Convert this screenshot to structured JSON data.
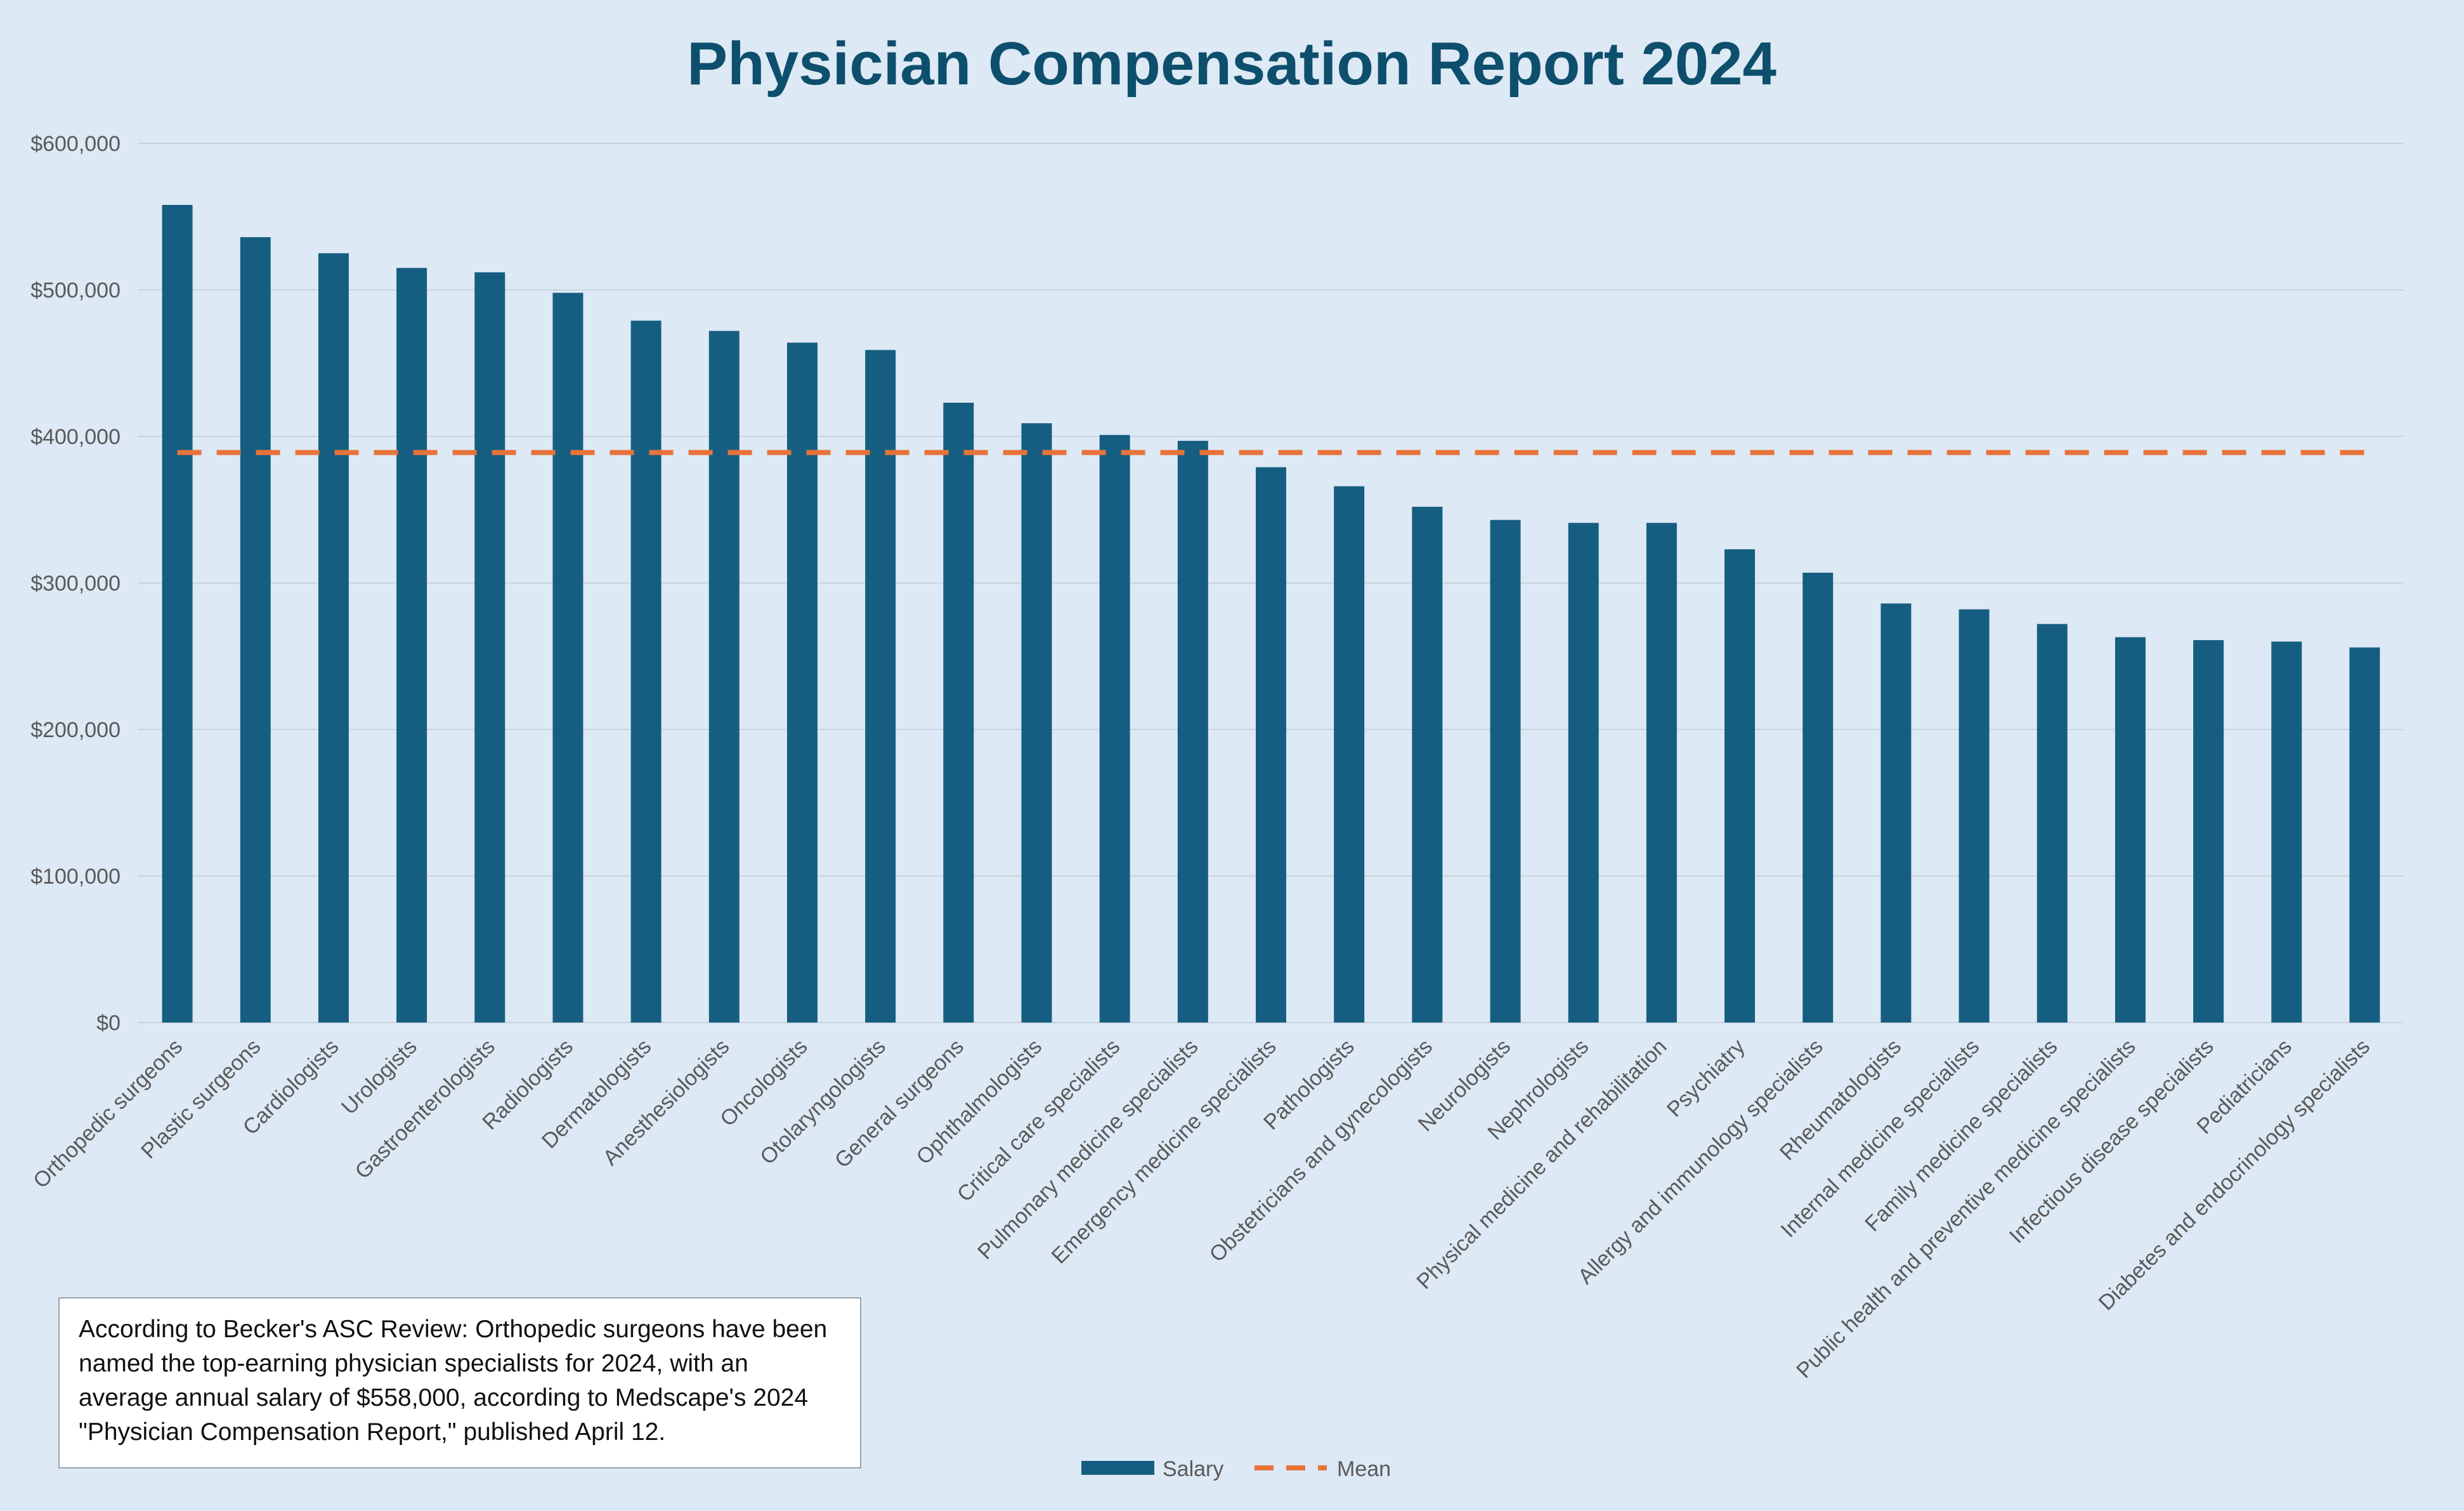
{
  "chart_data": {
    "type": "bar",
    "title": "Physician Compensation Report 2024",
    "xlabel": "",
    "ylabel": "",
    "ylim": [
      0,
      600000
    ],
    "yticks": [
      0,
      100000,
      200000,
      300000,
      400000,
      500000,
      600000
    ],
    "ytick_labels": [
      "$0",
      "$100,000",
      "$200,000",
      "$300,000",
      "$400,000",
      "$500,000",
      "$600,000"
    ],
    "grid": true,
    "legend_position": "bottom",
    "categories": [
      "Orthopedic surgeons",
      "Plastic surgeons",
      "Cardiologists",
      "Urologists",
      "Gastroenterologists",
      "Radiologists",
      "Dermatologists",
      "Anesthesiologists",
      "Oncologists",
      "Otolaryngologists",
      "General surgeons",
      "Ophthalmologists",
      "Critical care specialists",
      "Pulmonary medicine specialists",
      "Emergency medicine specialists",
      "Pathologists",
      "Obstetricians and gynecologists",
      "Neurologists",
      "Nephrologists",
      "Physical medicine and rehabilitation",
      "Psychiatry",
      "Allergy and immunology specialists",
      "Rheumatologists",
      "Internal medicine specialists",
      "Family medicine specialists",
      "Public health and preventive medicine specialists",
      "Infectious disease specialists",
      "Pediatricians",
      "Diabetes and endocrinology specialists"
    ],
    "series": [
      {
        "name": "Salary",
        "type": "bar",
        "color": "#165e81",
        "values": [
          558000,
          536000,
          525000,
          515000,
          512000,
          498000,
          479000,
          472000,
          464000,
          459000,
          423000,
          409000,
          401000,
          397000,
          379000,
          366000,
          352000,
          343000,
          341000,
          341000,
          323000,
          307000,
          286000,
          282000,
          272000,
          263000,
          261000,
          260000,
          256000
        ]
      },
      {
        "name": "Mean",
        "type": "line",
        "style": "dashed",
        "color": "#e8733a",
        "values": [
          389000,
          389000,
          389000,
          389000,
          389000,
          389000,
          389000,
          389000,
          389000,
          389000,
          389000,
          389000,
          389000,
          389000,
          389000,
          389000,
          389000,
          389000,
          389000,
          389000,
          389000,
          389000,
          389000,
          389000,
          389000,
          389000,
          389000,
          389000,
          389000
        ]
      }
    ],
    "annotation": "According to Becker's ASC Review: Orthopedic surgeons have been named the top-earning physician specialists for 2024, with an average annual salary of $558,000, according to Medscape's 2024 \"Physician Compensation Report,\" published April 12."
  },
  "colors": {
    "background": "#dde9f5",
    "title": "#0d4f6c",
    "bar": "#165e81",
    "mean": "#e8733a",
    "gridline": "#c9d3dd",
    "tick_text": "#595959"
  }
}
